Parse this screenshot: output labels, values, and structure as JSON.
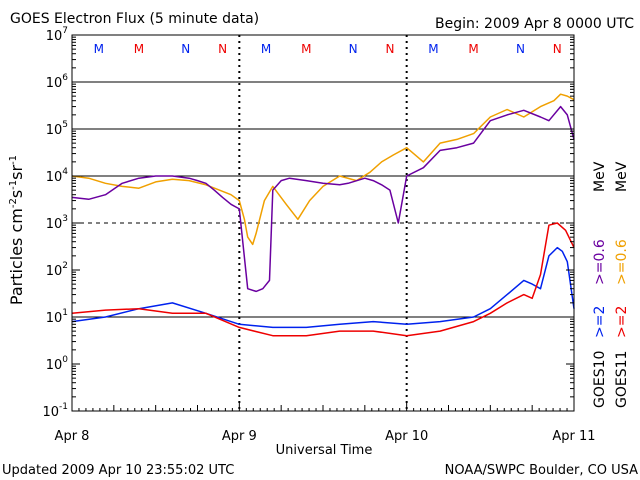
{
  "header": {
    "title": "GOES Electron Flux (5 minute data)",
    "begin": "Begin: 2009 Apr 8 0000 UTC"
  },
  "footer": {
    "updated": "Updated 2009 Apr 10 23:55:02 UTC",
    "credit": "NOAA/SWPC Boulder, CO USA"
  },
  "colors": {
    "goes10_e2": "#0022ee",
    "goes11_e2": "#ee0000",
    "goes10_e06": "#6a00a0",
    "goes11_e06": "#f0a000"
  },
  "chart_data": {
    "type": "line",
    "title": "GOES Electron Flux (5 minute data)",
    "xlabel": "Universal Time",
    "ylabel_parts": [
      "Particles cm",
      "-2",
      "s",
      "-1",
      "sr",
      "-1"
    ],
    "y_scale": "log",
    "ylim": [
      0.1,
      10000000
    ],
    "y_ticks": [
      {
        "value": 0.1,
        "base": "10",
        "exp": "-1"
      },
      {
        "value": 1,
        "base": "10",
        "exp": "0"
      },
      {
        "value": 10,
        "base": "10",
        "exp": "1"
      },
      {
        "value": 100,
        "base": "10",
        "exp": "2"
      },
      {
        "value": 1000,
        "base": "10",
        "exp": "3"
      },
      {
        "value": 10000,
        "base": "10",
        "exp": "4"
      },
      {
        "value": 100000,
        "base": "10",
        "exp": "5"
      },
      {
        "value": 1000000,
        "base": "10",
        "exp": "6"
      },
      {
        "value": 10000000,
        "base": "10",
        "exp": "7"
      }
    ],
    "x_unit": "days since 2009 Apr 8 0000 UTC",
    "xlim": [
      0,
      3
    ],
    "x_ticks": [
      {
        "value": 0,
        "label": "Apr 8"
      },
      {
        "value": 1,
        "label": "Apr 9"
      },
      {
        "value": 2,
        "label": "Apr 10"
      },
      {
        "value": 3,
        "label": "Apr 11"
      }
    ],
    "hlines": [
      {
        "value": 10,
        "style": "solid"
      },
      {
        "value": 1000,
        "style": "dashed"
      },
      {
        "value": 10000,
        "style": "solid"
      },
      {
        "value": 100000,
        "style": "solid"
      },
      {
        "value": 1000000,
        "style": "solid"
      }
    ],
    "markers": [
      {
        "x": 0.16,
        "label": "M",
        "color": "#0022ee"
      },
      {
        "x": 0.4,
        "label": "M",
        "color": "#ee0000"
      },
      {
        "x": 0.68,
        "label": "N",
        "color": "#0022ee"
      },
      {
        "x": 0.9,
        "label": "N",
        "color": "#ee0000"
      },
      {
        "x": 1.16,
        "label": "M",
        "color": "#0022ee"
      },
      {
        "x": 1.4,
        "label": "M",
        "color": "#ee0000"
      },
      {
        "x": 1.68,
        "label": "N",
        "color": "#0022ee"
      },
      {
        "x": 1.9,
        "label": "N",
        "color": "#ee0000"
      },
      {
        "x": 2.16,
        "label": "M",
        "color": "#0022ee"
      },
      {
        "x": 2.4,
        "label": "M",
        "color": "#ee0000"
      },
      {
        "x": 2.68,
        "label": "N",
        "color": "#0022ee"
      },
      {
        "x": 2.9,
        "label": "N",
        "color": "#ee0000"
      }
    ],
    "legend_right": [
      {
        "group": "GOES10",
        "label": ">=2",
        "color": "#0022ee"
      },
      {
        "group": "GOES10",
        "label": ">=0.6",
        "color": "#6a00a0"
      },
      {
        "group": "GOES11",
        "label": ">=2",
        "color": "#ee0000"
      },
      {
        "group": "GOES11",
        "label": ">=0.6",
        "color": "#f0a000"
      }
    ],
    "legend_unit": "MeV",
    "series": [
      {
        "name": "GOES11 >=0.6 MeV",
        "color": "#f0a000",
        "x": [
          0,
          0.1,
          0.2,
          0.3,
          0.4,
          0.5,
          0.6,
          0.7,
          0.8,
          0.88,
          0.95,
          1.0,
          1.03,
          1.05,
          1.08,
          1.1,
          1.15,
          1.2,
          1.28,
          1.35,
          1.42,
          1.5,
          1.6,
          1.7,
          1.78,
          1.85,
          1.92,
          2.0,
          2.1,
          2.2,
          2.3,
          2.4,
          2.5,
          2.6,
          2.7,
          2.8,
          2.88,
          2.92,
          2.96,
          3.0
        ],
        "y": [
          10000,
          9000,
          7000,
          6000,
          5500,
          7500,
          8500,
          8000,
          6500,
          5000,
          4000,
          3000,
          1200,
          500,
          350,
          600,
          3000,
          6000,
          2500,
          1200,
          3000,
          6000,
          10000,
          8000,
          12000,
          20000,
          28000,
          40000,
          20000,
          50000,
          60000,
          80000,
          180000,
          260000,
          180000,
          300000,
          400000,
          550000,
          500000,
          420000
        ]
      },
      {
        "name": "GOES10 >=0.6 MeV",
        "color": "#6a00a0",
        "x": [
          0,
          0.1,
          0.2,
          0.3,
          0.4,
          0.5,
          0.6,
          0.7,
          0.75,
          0.8,
          0.85,
          0.9,
          0.95,
          1.0,
          1.05,
          1.1,
          1.14,
          1.18,
          1.2,
          1.25,
          1.3,
          1.4,
          1.5,
          1.6,
          1.65,
          1.75,
          1.8,
          1.85,
          1.9,
          1.95,
          2.0,
          2.1,
          2.2,
          2.3,
          2.4,
          2.5,
          2.6,
          2.7,
          2.8,
          2.85,
          2.92,
          2.96,
          3.0
        ],
        "y": [
          3500,
          3200,
          4000,
          7000,
          9000,
          10000,
          10000,
          9000,
          8000,
          7000,
          5000,
          3500,
          2500,
          2000,
          40,
          35,
          40,
          60,
          5000,
          8000,
          9000,
          8000,
          7000,
          6500,
          7000,
          9000,
          8000,
          6500,
          5000,
          1000,
          10000,
          15000,
          35000,
          40000,
          50000,
          150000,
          200000,
          250000,
          180000,
          150000,
          300000,
          200000,
          60000
        ]
      },
      {
        "name": "GOES10 >=2 MeV",
        "color": "#0022ee",
        "x": [
          0,
          0.2,
          0.4,
          0.6,
          0.8,
          1.0,
          1.2,
          1.4,
          1.6,
          1.8,
          2.0,
          2.2,
          2.4,
          2.5,
          2.6,
          2.7,
          2.75,
          2.8,
          2.85,
          2.9,
          2.93,
          2.96,
          3.0
        ],
        "y": [
          8,
          10,
          15,
          20,
          12,
          7,
          6,
          6,
          7,
          8,
          7,
          8,
          10,
          15,
          30,
          60,
          50,
          40,
          200,
          300,
          250,
          150,
          15
        ]
      },
      {
        "name": "GOES11 >=2 MeV",
        "color": "#ee0000",
        "x": [
          0,
          0.2,
          0.4,
          0.6,
          0.8,
          1.0,
          1.2,
          1.4,
          1.6,
          1.8,
          2.0,
          2.2,
          2.4,
          2.5,
          2.6,
          2.7,
          2.75,
          2.8,
          2.85,
          2.9,
          2.95,
          3.0
        ],
        "y": [
          12,
          14,
          15,
          12,
          12,
          6,
          4,
          4,
          5,
          5,
          4,
          5,
          8,
          12,
          20,
          30,
          25,
          80,
          900,
          1000,
          700,
          300
        ]
      }
    ]
  }
}
